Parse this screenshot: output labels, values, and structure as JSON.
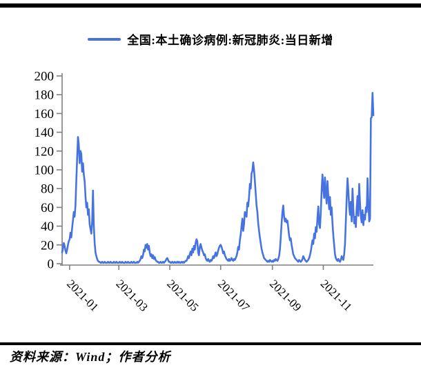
{
  "legend": {
    "label": "全国:本土确诊病例:新冠肺炎:当日新增",
    "swatch_color": "#4673E0"
  },
  "source": {
    "text": "资料来源：Wind；作者分析"
  },
  "chart_data": {
    "type": "line",
    "title": "",
    "xlabel": "",
    "ylabel": "",
    "ylim": [
      0,
      200
    ],
    "yticks": [
      0,
      20,
      40,
      60,
      80,
      100,
      120,
      140,
      160,
      180,
      200
    ],
    "grid": false,
    "legend_position": "top",
    "line_color": "#4673E0",
    "axis_color": "#7F7F7F",
    "tick_label_color": "#000000",
    "xticks": [
      {
        "label": "2021-01",
        "day_index": 9
      },
      {
        "label": "2021-03",
        "day_index": 68
      },
      {
        "label": "2021-05",
        "day_index": 129
      },
      {
        "label": "2021-07",
        "day_index": 190
      },
      {
        "label": "2021-09",
        "day_index": 252
      },
      {
        "label": "2021-11",
        "day_index": 313
      }
    ],
    "series": [
      {
        "name": "全国:本土确诊病例:新冠肺炎:当日新增",
        "start_date": "2020-12-23",
        "frequency": "daily",
        "values": [
          12,
          16,
          22,
          19,
          14,
          11,
          15,
          20,
          24,
          26,
          33,
          28,
          38,
          46,
          55,
          50,
          62,
          88,
          112,
          135,
          127,
          107,
          120,
          117,
          98,
          107,
          95,
          88,
          72,
          60,
          65,
          52,
          58,
          42,
          37,
          32,
          45,
          78,
          40,
          22,
          12,
          8,
          5,
          3,
          2,
          2,
          1,
          1,
          2,
          1,
          1,
          2,
          1,
          1,
          1,
          2,
          1,
          1,
          2,
          1,
          1,
          1,
          2,
          1,
          1,
          2,
          1,
          1,
          1,
          2,
          1,
          1,
          2,
          1,
          1,
          1,
          2,
          1,
          1,
          2,
          1,
          1,
          1,
          2,
          1,
          1,
          2,
          1,
          1,
          1,
          2,
          1,
          2,
          3,
          5,
          8,
          6,
          9,
          15,
          13,
          20,
          17,
          21,
          15,
          19,
          12,
          8,
          10,
          6,
          9,
          5,
          7,
          4,
          3,
          2,
          2,
          1,
          1,
          2,
          1,
          1,
          2,
          1,
          2,
          3,
          5,
          6,
          4,
          2,
          2,
          1,
          1,
          2,
          1,
          1,
          2,
          1,
          1,
          2,
          1,
          2,
          1,
          1,
          2,
          1,
          2,
          1,
          2,
          3,
          3,
          5,
          8,
          6,
          10,
          13,
          9,
          16,
          12,
          19,
          15,
          22,
          26,
          24,
          12,
          9,
          18,
          21,
          17,
          14,
          12,
          9,
          10,
          6,
          4,
          3,
          5,
          3,
          2,
          4,
          3,
          5,
          8,
          6,
          9,
          12,
          8,
          10,
          14,
          17,
          19,
          20,
          18,
          15,
          11,
          13,
          9,
          7,
          5,
          4,
          3,
          5,
          3,
          4,
          6,
          4,
          3,
          5,
          4,
          6,
          8,
          12,
          18,
          15,
          25,
          31,
          40,
          48,
          35,
          42,
          55,
          53,
          50,
          65,
          61,
          71,
          85,
          80,
          96,
          99,
          108,
          100,
          88,
          75,
          62,
          55,
          43,
          35,
          28,
          22,
          16,
          12,
          9,
          6,
          5,
          4,
          3,
          2,
          3,
          2,
          4,
          3,
          2,
          3,
          2,
          4,
          3,
          5,
          4,
          3,
          5,
          8,
          15,
          28,
          43,
          55,
          62,
          50,
          45,
          48,
          44,
          46,
          38,
          30,
          25,
          27,
          20,
          15,
          10,
          8,
          6,
          5,
          4,
          3,
          2,
          4,
          3,
          2,
          3,
          5,
          8,
          6,
          4,
          3,
          2,
          3,
          4,
          6,
          9,
          13,
          19,
          25,
          21,
          32,
          27,
          39,
          34,
          49,
          61,
          42,
          38,
          55,
          78,
          95,
          80,
          70,
          92,
          75,
          64,
          88,
          72,
          58,
          71,
          52,
          60,
          43,
          30,
          20,
          10,
          6,
          4,
          3,
          5,
          3,
          2,
          4,
          8,
          6,
          4,
          10,
          21,
          45,
          70,
          91,
          78,
          61,
          52,
          66,
          45,
          80,
          58,
          43,
          50,
          39,
          60,
          72,
          51,
          85,
          64,
          50,
          44,
          57,
          41,
          52,
          47,
          60,
          55,
          91,
          65,
          45,
          48,
          155,
          156,
          182,
          158
        ]
      }
    ]
  }
}
